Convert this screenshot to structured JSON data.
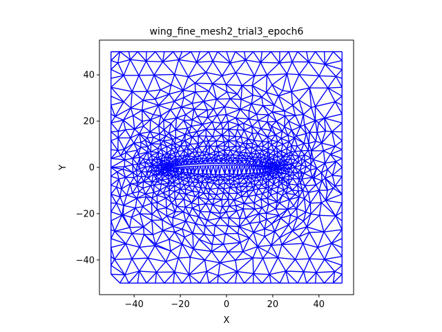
{
  "chart_data": {
    "type": "mesh",
    "title": "wing_fine_mesh2_trial3_epoch6",
    "xlabel": "X",
    "ylabel": "Y",
    "xlim": [
      -55,
      55
    ],
    "ylim": [
      -55,
      55
    ],
    "xticks": [
      -40,
      -20,
      0,
      20,
      40
    ],
    "yticks": [
      -40,
      -20,
      0,
      20,
      40
    ],
    "xtick_labels": [
      "−40",
      "−20",
      "0",
      "20",
      "40"
    ],
    "ytick_labels": [
      "−40",
      "−20",
      "0",
      "20",
      "40"
    ],
    "domain": {
      "xmin": -50,
      "xmax": 50,
      "ymin": -50,
      "ymax": 50
    },
    "airfoil": {
      "leading_edge": [
        -24.5,
        0
      ],
      "trailing_edge": [
        20,
        0
      ],
      "chord": 44.5,
      "max_thickness": 5.0,
      "camber": 1.1,
      "refined_region_half_width": 29,
      "refined_region_half_height": 9
    },
    "grid": false,
    "legend": "none",
    "colors": {
      "mesh": "#0000ff",
      "axes": "#000000",
      "background": "#ffffff"
    }
  }
}
